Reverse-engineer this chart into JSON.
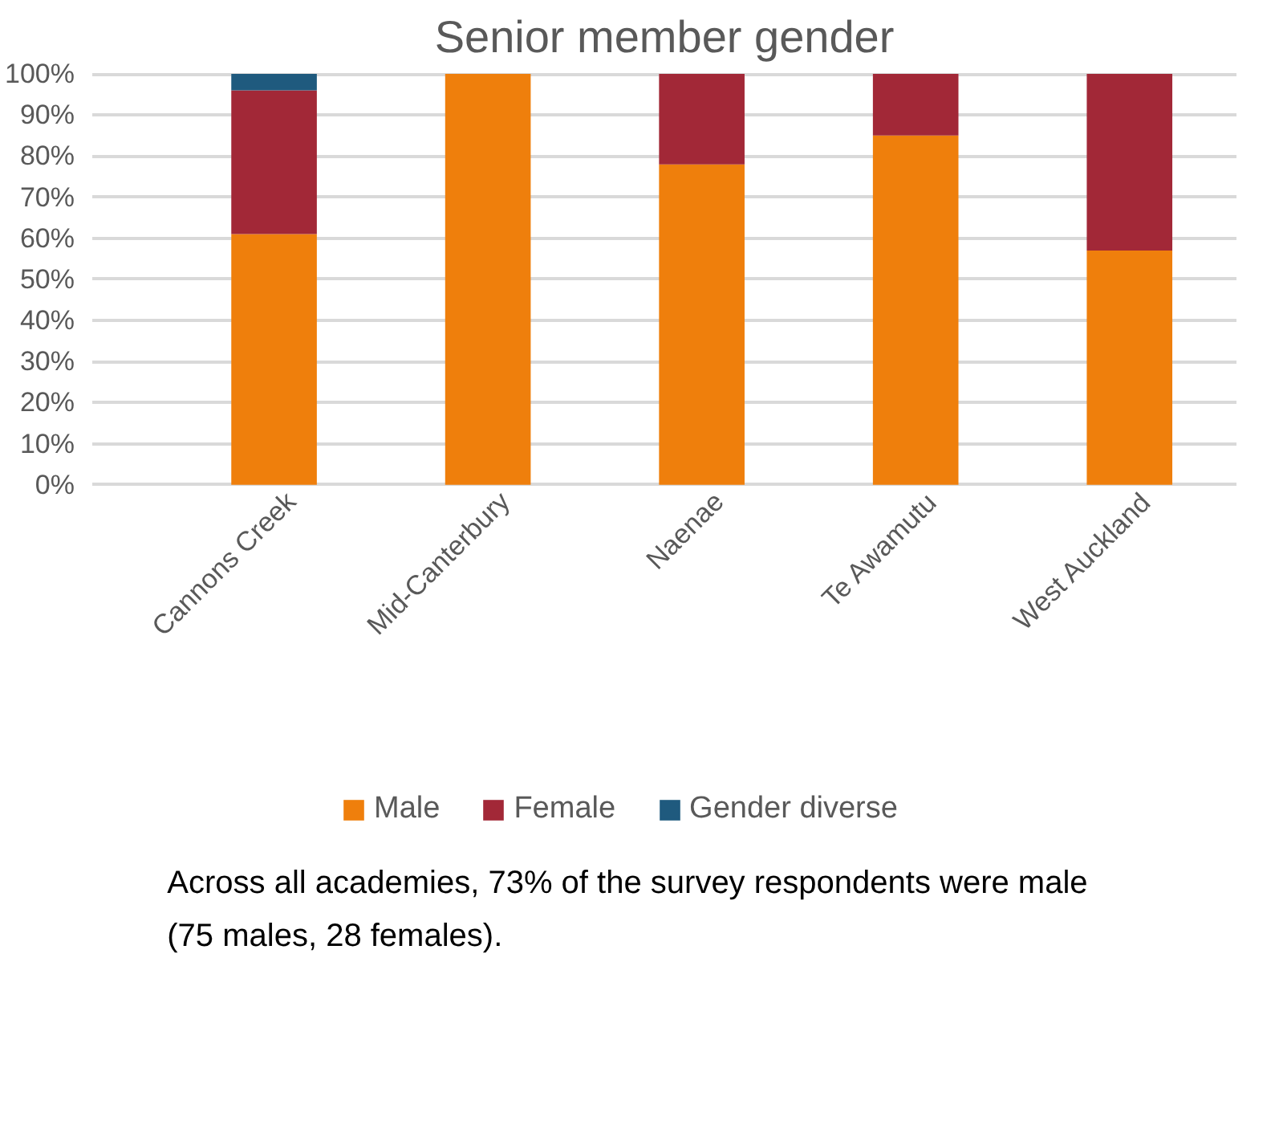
{
  "chart_data": {
    "type": "bar",
    "title": "Senior member gender",
    "stacked": true,
    "categories": [
      "Cannons Creek",
      "Mid-Canterbury",
      "Naenae",
      "Te Awamutu",
      "West Auckland"
    ],
    "series": [
      {
        "name": "Male",
        "color": "#ef7f0c",
        "values": [
          61,
          100,
          78,
          85,
          57
        ]
      },
      {
        "name": "Female",
        "color": "#a22837",
        "values": [
          35,
          0,
          22,
          15,
          43
        ]
      },
      {
        "name": "Gender diverse",
        "color": "#1f5a7e",
        "values": [
          4,
          0,
          0,
          0,
          0
        ]
      }
    ],
    "ylim": [
      0,
      100
    ],
    "yticks": [
      {
        "value": 0,
        "label": "0%"
      },
      {
        "value": 10,
        "label": "10%"
      },
      {
        "value": 20,
        "label": "20%"
      },
      {
        "value": 30,
        "label": "30%"
      },
      {
        "value": 40,
        "label": "40%"
      },
      {
        "value": 50,
        "label": "50%"
      },
      {
        "value": 60,
        "label": "60%"
      },
      {
        "value": 70,
        "label": "70%"
      },
      {
        "value": 80,
        "label": "80%"
      },
      {
        "value": 90,
        "label": "90%"
      },
      {
        "value": 100,
        "label": "100%"
      }
    ],
    "grid": "y",
    "legend": "bottom",
    "annotations": [
      "Across all academies, 73% of the survey respondents were male (75 males, 28 females)."
    ]
  }
}
